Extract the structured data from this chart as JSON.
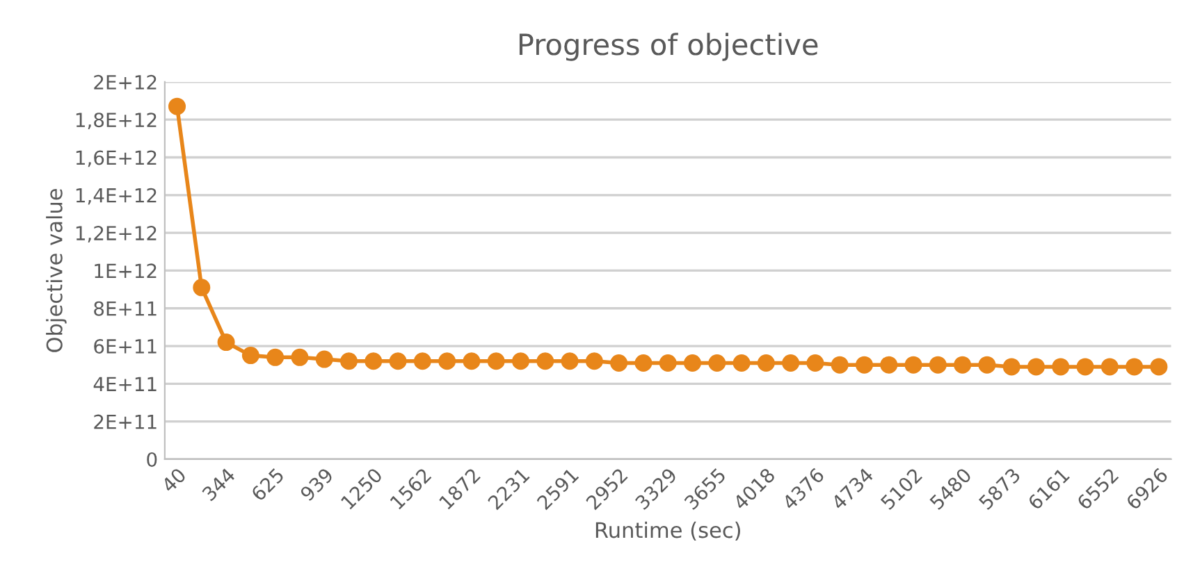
{
  "chart_data": {
    "type": "line",
    "title": "Progress of objective",
    "xlabel": "Runtime (sec)",
    "ylabel": "Objective value",
    "categories": [
      "40",
      null,
      "344",
      null,
      "625",
      null,
      "939",
      null,
      "1250",
      null,
      "1562",
      null,
      "1872",
      null,
      "2231",
      null,
      "2591",
      null,
      "2952",
      null,
      "3329",
      null,
      "3655",
      null,
      "4018",
      null,
      "4376",
      null,
      "4734",
      null,
      "5102",
      null,
      "5480",
      null,
      "5873",
      null,
      "6161",
      null,
      "6552",
      null,
      "6926"
    ],
    "series": [
      {
        "color": "#e8861a",
        "values": [
          1870000000000.0,
          910000000000.0,
          620000000000.0,
          550000000000.0,
          540000000000.0,
          540000000000.0,
          530000000000.0,
          520000000000.0,
          520000000000.0,
          520000000000.0,
          520000000000.0,
          520000000000.0,
          520000000000.0,
          520000000000.0,
          520000000000.0,
          520000000000.0,
          520000000000.0,
          520000000000.0,
          510000000000.0,
          510000000000.0,
          510000000000.0,
          510000000000.0,
          510000000000.0,
          510000000000.0,
          510000000000.0,
          510000000000.0,
          510000000000.0,
          500000000000.0,
          500000000000.0,
          500000000000.0,
          500000000000.0,
          500000000000.0,
          500000000000.0,
          500000000000.0,
          490000000000.0,
          490000000000.0,
          490000000000.0,
          490000000000.0,
          490000000000.0,
          490000000000.0,
          490000000000.0
        ]
      }
    ],
    "ylim": [
      0,
      2000000000000.0
    ],
    "yticks": [
      {
        "value": 0,
        "label": "0"
      },
      {
        "value": 200000000000.0,
        "label": "2E+11"
      },
      {
        "value": 400000000000.0,
        "label": "4E+11"
      },
      {
        "value": 600000000000.0,
        "label": "6E+11"
      },
      {
        "value": 800000000000.0,
        "label": "8E+11"
      },
      {
        "value": 1000000000000.0,
        "label": "1E+12"
      },
      {
        "value": 1200000000000.0,
        "label": "1,2E+12"
      },
      {
        "value": 1400000000000.0,
        "label": "1,4E+12"
      },
      {
        "value": 1600000000000.0,
        "label": "1,6E+12"
      },
      {
        "value": 1800000000000.0,
        "label": "1,8E+12"
      },
      {
        "value": 2000000000000.0,
        "label": "2E+12"
      }
    ],
    "grid": "y",
    "legend": false,
    "marker": "circle",
    "line_style": "solid"
  }
}
